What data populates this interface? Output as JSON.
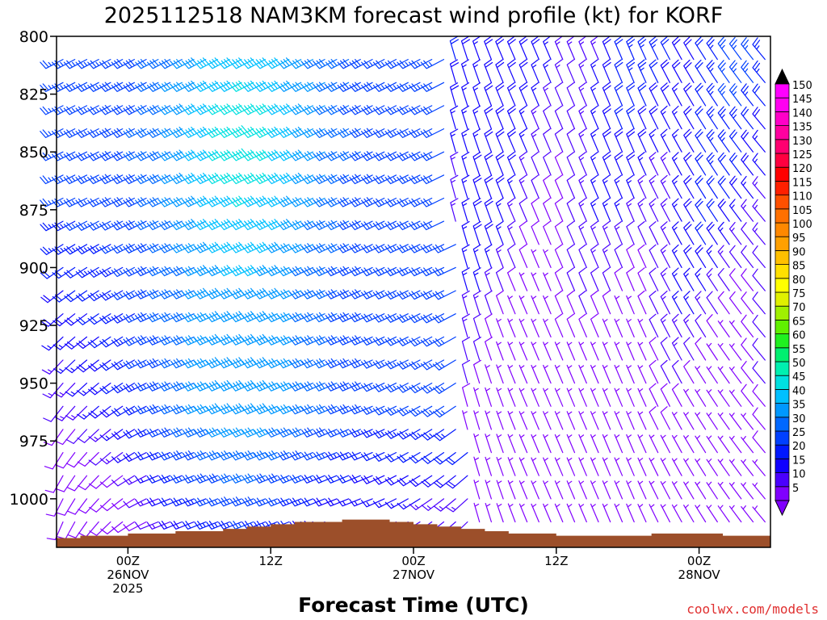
{
  "chart_data": {
    "type": "wind-barb-profile",
    "title": "2025112518 NAM3KM forecast wind profile (kt) for KORF",
    "xlabel": "Forecast Time (UTC)",
    "ylabel": "",
    "watermark": "coolwx.com/models",
    "x_ticks": [
      {
        "hour": 6,
        "lines": [
          "00Z",
          "26NOV",
          "2025"
        ]
      },
      {
        "hour": 18,
        "lines": [
          "12Z"
        ]
      },
      {
        "hour": 30,
        "lines": [
          "00Z",
          "27NOV"
        ]
      },
      {
        "hour": 42,
        "lines": [
          "12Z"
        ]
      },
      {
        "hour": 54,
        "lines": [
          "00Z",
          "28NOV"
        ]
      }
    ],
    "xlim_hours": [
      0,
      60
    ],
    "y_ticks": [
      "800",
      "825",
      "850",
      "875",
      "900",
      "925",
      "950",
      "975",
      "1000"
    ],
    "ylim_hPa": [
      800,
      1021
    ],
    "time_step_hours": 1,
    "pressure_levels": [
      810,
      820,
      830,
      840,
      850,
      860,
      870,
      880,
      890,
      900,
      910,
      920,
      930,
      940,
      950,
      960,
      970,
      980,
      990,
      1000,
      1010
    ],
    "wind_summary": {
      "phase1_hours": [
        0,
        32
      ],
      "phase1_direction": "west-southwest",
      "phase1_speed_kt_range": [
        10,
        50
      ],
      "peak_speed_kt": 50,
      "peak_location": "~850 hPa around 12Z-18Z 26NOV",
      "phase2_hours": [
        32,
        60
      ],
      "phase2_direction": "north to northwest",
      "phase2_speed_kt_range": [
        5,
        30
      ]
    },
    "terrain": {
      "hours": [
        0,
        2,
        4,
        6,
        8,
        10,
        12,
        14,
        16,
        18,
        20,
        22,
        24,
        26,
        28,
        30,
        32,
        34,
        36,
        38,
        40,
        42,
        44,
        46,
        48,
        50,
        52,
        54,
        56,
        58,
        60
      ],
      "surface_pressure_hPa": [
        1017,
        1016,
        1016,
        1015,
        1015,
        1014,
        1014,
        1013,
        1012,
        1011,
        1010,
        1010,
        1009,
        1009,
        1010,
        1011,
        1012,
        1013,
        1014,
        1015,
        1015,
        1016,
        1016,
        1016,
        1016,
        1015,
        1015,
        1015,
        1016,
        1016,
        1016
      ],
      "color": "#9c4f2a"
    },
    "colorbar": {
      "values": [
        5,
        10,
        15,
        20,
        25,
        30,
        35,
        40,
        45,
        50,
        55,
        60,
        65,
        70,
        75,
        80,
        85,
        90,
        95,
        100,
        105,
        110,
        115,
        120,
        125,
        130,
        135,
        140,
        145,
        150
      ],
      "colors": [
        "#8000ff",
        "#4a00ff",
        "#1000ff",
        "#0018ff",
        "#0040ff",
        "#0068ff",
        "#0098ff",
        "#00c0ff",
        "#00e0e0",
        "#00f0b0",
        "#00f070",
        "#20f020",
        "#60f000",
        "#a0f000",
        "#e0f000",
        "#ffff00",
        "#ffe000",
        "#ffc000",
        "#ffa000",
        "#ff8800",
        "#ff7000",
        "#ff5000",
        "#ff2000",
        "#ff0000",
        "#ff0040",
        "#ff0070",
        "#ff00a0",
        "#ff00c8",
        "#ff00f0",
        "#ff00ff"
      ],
      "top_arrow_color": "#000000",
      "bottom_arrow_color": "#8000ff"
    }
  }
}
